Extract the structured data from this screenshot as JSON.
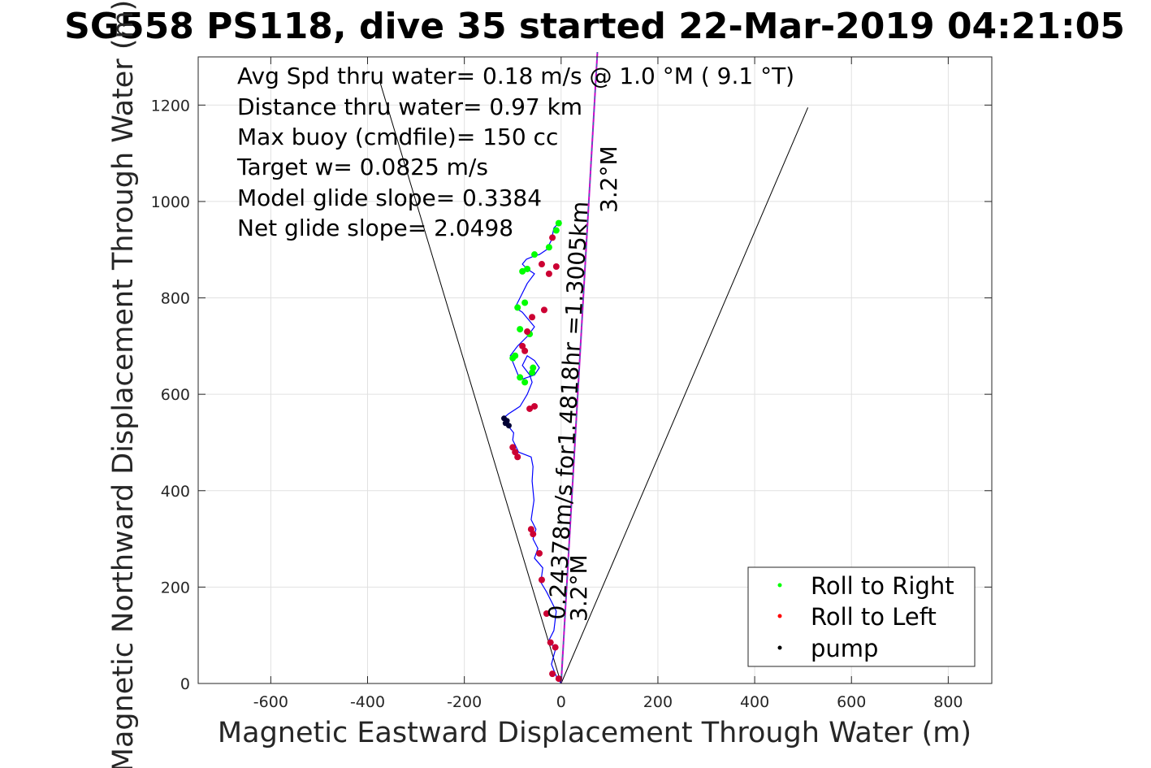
{
  "chart_data": {
    "type": "line",
    "title": "SG558 PS118, dive 35 started 22-Mar-2019 04:21:05",
    "xlabel": "Magnetic Eastward Displacement Through Water (m)",
    "ylabel": "Magnetic Northward Displacement Through Water (m)",
    "xlim": [
      -750,
      890
    ],
    "ylim": [
      0,
      1300
    ],
    "xticks": [
      -600,
      -400,
      -200,
      0,
      200,
      400,
      600,
      800
    ],
    "yticks": [
      0,
      200,
      400,
      600,
      800,
      1000,
      1200
    ],
    "xtick_labels": [
      "-600",
      "-400",
      "-200",
      "0",
      "200",
      "400",
      "600",
      "800"
    ],
    "ytick_labels": [
      "0",
      "200",
      "400",
      "600",
      "800",
      "1000",
      "1200"
    ],
    "grid": true,
    "legend_position": "bottom-right",
    "legend": [
      {
        "label": "Roll to Right",
        "color": "#00ff00"
      },
      {
        "label": "Roll to Left",
        "color": "#ff0000"
      },
      {
        "label": "pump",
        "color": "#000000"
      }
    ],
    "annotations": [
      "Avg Spd thru water=  0.18 m/s @   1.0 °M (  9.1 °T)",
      "Distance thru water=  0.97 km",
      "Max buoy (cmdfile)= 150 cc",
      "Target w= 0.0825 m/s",
      "Model glide slope= 0.3384",
      "Net glide slope= 2.0498"
    ],
    "heading_label_near": "3.2°M",
    "heading_label_far": "3.2°M",
    "drift_label": "0.24378m/s for1.4818hr =1.3005km",
    "heading_deg": 3.2,
    "cone_lines": [
      {
        "name": "glide-cone-left",
        "x": [
          0,
          -375
        ],
        "y": [
          0,
          1250
        ]
      },
      {
        "name": "glide-cone-right",
        "x": [
          0,
          510
        ],
        "y": [
          0,
          1195
        ]
      },
      {
        "name": "heading-line",
        "x": [
          0,
          75
        ],
        "y": [
          0,
          1310
        ]
      }
    ],
    "track": {
      "name": "dive track",
      "color": "#0000ff",
      "x": [
        0,
        -10,
        -20,
        -12,
        -25,
        -15,
        -10,
        -30,
        -42,
        -38,
        -55,
        -48,
        -58,
        -52,
        -62,
        -56,
        -60,
        -58,
        -62,
        -88,
        -95,
        -100,
        -98,
        -110,
        -120,
        -108,
        -85,
        -70,
        -60,
        -65,
        -80,
        -70,
        -55,
        -45,
        -55,
        -85,
        -105,
        -90,
        -70,
        -55,
        -80,
        -95,
        -85,
        -70,
        -55,
        -70,
        -80,
        -72,
        -60,
        -45,
        -30,
        -20,
        -15,
        -5,
        0
      ],
      "y": [
        0,
        15,
        40,
        70,
        90,
        110,
        150,
        190,
        210,
        240,
        260,
        280,
        300,
        320,
        340,
        380,
        420,
        450,
        470,
        480,
        495,
        505,
        520,
        535,
        550,
        560,
        575,
        600,
        625,
        640,
        660,
        680,
        670,
        655,
        640,
        630,
        680,
        700,
        720,
        740,
        770,
        780,
        800,
        830,
        850,
        860,
        870,
        880,
        885,
        890,
        900,
        920,
        945,
        955,
        960
      ]
    },
    "roll_right_points": {
      "x": [
        -100,
        -95,
        -85,
        -75,
        -60,
        -58,
        -65,
        -85,
        -90,
        -75,
        -80,
        -70,
        -55,
        -25,
        -10,
        -5
      ],
      "y": [
        675,
        680,
        635,
        625,
        645,
        655,
        725,
        735,
        780,
        790,
        855,
        860,
        890,
        905,
        940,
        955
      ]
    },
    "roll_left_points": {
      "x": [
        -5,
        -18,
        -12,
        -22,
        -30,
        -40,
        -45,
        -58,
        -62,
        -90,
        -100,
        -95,
        -65,
        -55,
        -75,
        -80,
        -70,
        -60,
        -35,
        -25,
        -40,
        -10,
        -18
      ],
      "y": [
        10,
        20,
        75,
        85,
        145,
        215,
        270,
        310,
        320,
        470,
        490,
        480,
        570,
        575,
        690,
        700,
        730,
        760,
        775,
        850,
        870,
        865,
        925
      ]
    },
    "pump_points": {
      "x": [
        -112,
        -118,
        -115,
        -108
      ],
      "y": [
        545,
        550,
        540,
        535
      ]
    }
  }
}
